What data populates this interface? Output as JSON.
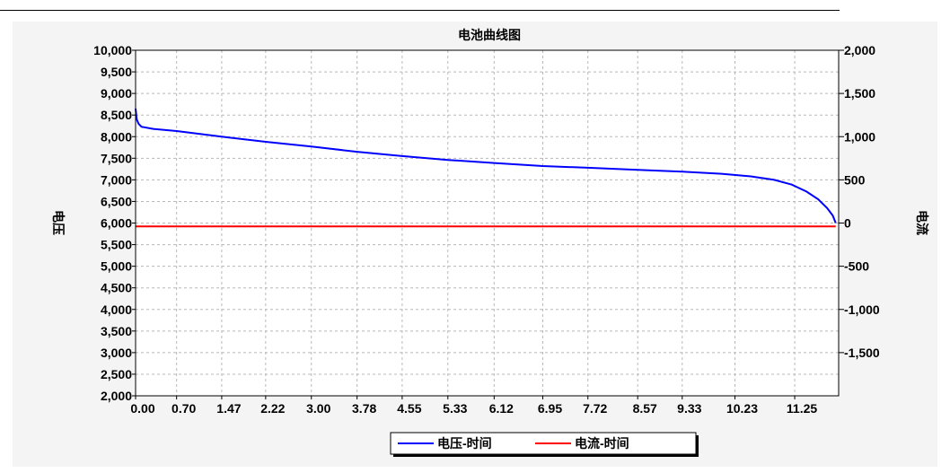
{
  "chart_data": {
    "type": "line",
    "title": "电池曲线图",
    "y_left_label": "电压",
    "y_right_label": "电流",
    "y_left_range": [
      2000,
      10000
    ],
    "y_left_ticks": [
      "10,000",
      "9,500",
      "9,000",
      "8,500",
      "8,000",
      "7,500",
      "7,000",
      "6,500",
      "6,000",
      "5,500",
      "5,000",
      "4,500",
      "4,000",
      "3,500",
      "3,000",
      "2,500",
      "2,000"
    ],
    "y_right_range": [
      -2000,
      2000
    ],
    "y_right_ticks": [
      "2,000",
      "1,500",
      "1,000",
      "500",
      "0",
      "-500",
      "-1,000",
      "-1,500"
    ],
    "x_range": [
      0,
      12.0
    ],
    "x_ticks": [
      "0.00",
      "0.70",
      "1.47",
      "2.22",
      "3.00",
      "3.78",
      "4.55",
      "5.33",
      "6.12",
      "6.95",
      "7.72",
      "8.57",
      "9.33",
      "10.23",
      "11.25"
    ],
    "grid": true,
    "legend_position": "bottom",
    "series": [
      {
        "name": "电压-时间",
        "axis": "left",
        "color": "#0000ff",
        "x": [
          0,
          0.02,
          0.05,
          0.1,
          0.3,
          0.7,
          1.47,
          2.22,
          3.0,
          3.78,
          4.55,
          5.33,
          6.12,
          6.95,
          7.72,
          8.57,
          9.33,
          10.0,
          10.5,
          10.9,
          11.2,
          11.45,
          11.65,
          11.8,
          11.9,
          11.95
        ],
        "y": [
          8650,
          8400,
          8300,
          8230,
          8180,
          8130,
          8000,
          7880,
          7770,
          7650,
          7550,
          7460,
          7390,
          7320,
          7280,
          7230,
          7190,
          7140,
          7080,
          7000,
          6890,
          6730,
          6550,
          6350,
          6170,
          6000
        ]
      },
      {
        "name": "电流-时间",
        "axis": "right",
        "color": "#ff0000",
        "x": [
          0,
          11.95
        ],
        "y": [
          -40,
          -40
        ]
      }
    ]
  },
  "colors": {
    "panel_bg": "#f4f4f4",
    "plot_bg": "#ffffff",
    "grid": "#b8b8b8"
  }
}
